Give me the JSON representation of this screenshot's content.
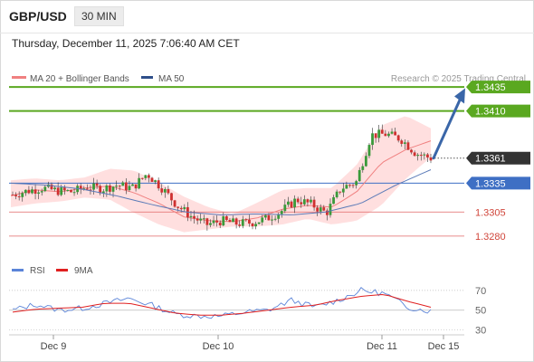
{
  "header": {
    "symbol": "GBP/USD",
    "timeframe": "30 MIN"
  },
  "datetime": "Thursday, December 11, 2025 7:06:40 AM CET",
  "source": "Research © 2025 Trading Central",
  "colors": {
    "resistance": "#5aa820",
    "current": "#333333",
    "pivot": "#3e6fc4",
    "support": "#e06666",
    "bollinger_fill": "#ffd9d9",
    "ma20": "#f08080",
    "ma50": "#5b7bb8",
    "candle_up": "#3a9a3a",
    "candle_down": "#d03030",
    "arrow": "#3a66a8",
    "rsi": "#5b84d8",
    "rsi_ma": "#e02020"
  },
  "chart_data": [
    {
      "type": "candlestick",
      "title": "GBP/USD",
      "legend": [
        {
          "name": "MA 20 + Bollinger Bands",
          "color": "#f08080"
        },
        {
          "name": "MA 50",
          "color": "#3e6fc4"
        }
      ],
      "legend_position": "top-left",
      "x_ticks": [
        "Dec 9",
        "Dec 10",
        "Dec 11",
        "Dec 15"
      ],
      "ylim": [
        1.3262,
        1.3452
      ],
      "levels": [
        {
          "label": "1.3435",
          "value": 1.3435,
          "kind": "resistance"
        },
        {
          "label": "1.3410",
          "value": 1.341,
          "kind": "resistance"
        },
        {
          "label": "1.3361",
          "value": 1.3361,
          "kind": "current"
        },
        {
          "label": "1.3335",
          "value": 1.3335,
          "kind": "pivot"
        },
        {
          "label": "1.3305",
          "value": 1.3305,
          "kind": "support"
        },
        {
          "label": "1.3280",
          "value": 1.328,
          "kind": "support"
        }
      ],
      "projection": {
        "from": 1.3361,
        "to": 1.3428
      },
      "price_anchors": [
        1.3323,
        1.3327,
        1.333,
        1.3327,
        1.3326,
        1.3331,
        1.3329,
        1.3333,
        1.333,
        1.3345,
        1.333,
        1.3312,
        1.33,
        1.3292,
        1.3296,
        1.3293,
        1.3294,
        1.3298,
        1.3306,
        1.3318,
        1.3313,
        1.3304,
        1.333,
        1.3336,
        1.3385,
        1.3386,
        1.3381,
        1.3366,
        1.3361
      ],
      "ma20_anchors": [
        1.3322,
        1.3328,
        1.3326,
        1.333,
        1.3332,
        1.3325,
        1.3314,
        1.33,
        1.3296,
        1.3295,
        1.3299,
        1.3308,
        1.3312,
        1.331,
        1.3326,
        1.3356,
        1.337,
        1.3379
      ],
      "bb_upper_anchors": [
        1.3338,
        1.334,
        1.3338,
        1.3341,
        1.335,
        1.3348,
        1.3336,
        1.3321,
        1.331,
        1.3303,
        1.3315,
        1.3328,
        1.333,
        1.333,
        1.3354,
        1.3395,
        1.3405,
        1.3392
      ],
      "bb_lower_anchors": [
        1.331,
        1.3314,
        1.3316,
        1.332,
        1.3318,
        1.3304,
        1.3292,
        1.3284,
        1.3287,
        1.329,
        1.329,
        1.3292,
        1.3298,
        1.3292,
        1.3296,
        1.3312,
        1.334,
        1.3362
      ],
      "ma50_anchors": [
        1.3335,
        1.3333,
        1.3329,
        1.3322,
        1.3313,
        1.3305,
        1.3302,
        1.3303,
        1.3302,
        1.3305,
        1.3314,
        1.3333,
        1.3349
      ]
    },
    {
      "type": "line",
      "title": "RSI",
      "legend": [
        {
          "name": "RSI",
          "color": "#5b84d8"
        },
        {
          "name": "9MA",
          "color": "#e02020"
        }
      ],
      "ylim": [
        25,
        80
      ],
      "y_ticks": [
        "70",
        "50",
        "30"
      ],
      "rsi_anchors": [
        50,
        56,
        50,
        52,
        57,
        62,
        55,
        46,
        44,
        44,
        48,
        50,
        60,
        53,
        60,
        70,
        67,
        53,
        49
      ],
      "ma9_anchors": [
        48,
        51,
        52,
        53,
        57,
        57,
        52,
        47,
        45,
        45,
        47,
        50,
        53,
        55,
        60,
        64,
        66,
        59,
        53
      ]
    }
  ]
}
